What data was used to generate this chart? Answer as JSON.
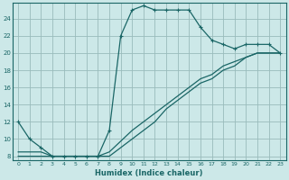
{
  "xlabel": "Humidex (Indice chaleur)",
  "bg_color": "#cce8e8",
  "grid_color": "#99bbbb",
  "line_color": "#1a6666",
  "xlim": [
    -0.5,
    23.5
  ],
  "ylim": [
    7.5,
    25.8
  ],
  "xticks": [
    0,
    1,
    2,
    3,
    4,
    5,
    6,
    7,
    8,
    9,
    10,
    11,
    12,
    13,
    14,
    15,
    16,
    17,
    18,
    19,
    20,
    21,
    22,
    23
  ],
  "yticks": [
    8,
    10,
    12,
    14,
    16,
    18,
    20,
    22,
    24
  ],
  "curve1_x": [
    0,
    1,
    2,
    3,
    4,
    5,
    6,
    7,
    8,
    9,
    10,
    11,
    12,
    13,
    14,
    15,
    16,
    17,
    18,
    19,
    20,
    21,
    22,
    23
  ],
  "curve1_y": [
    12,
    10,
    9,
    8,
    8,
    8,
    8,
    8,
    11,
    22,
    25,
    25.5,
    25,
    25,
    25,
    25,
    23,
    21.5,
    21,
    20.5,
    21,
    21,
    21,
    20
  ],
  "curve2_x": [
    0,
    2,
    3,
    4,
    5,
    6,
    7,
    8,
    10,
    11,
    12,
    13,
    14,
    15,
    16,
    17,
    18,
    19,
    20,
    21,
    22,
    23
  ],
  "curve2_y": [
    8,
    8,
    8,
    8,
    8,
    8,
    8,
    8,
    10,
    11,
    12,
    13.5,
    14.5,
    15.5,
    16.5,
    17,
    18,
    18.5,
    19.5,
    20,
    20,
    20
  ],
  "curve3_x": [
    0,
    2,
    3,
    4,
    5,
    6,
    7,
    8,
    10,
    11,
    12,
    13,
    14,
    15,
    16,
    17,
    18,
    19,
    20,
    21,
    22,
    23
  ],
  "curve3_y": [
    8.5,
    8.5,
    8,
    8,
    8,
    8,
    8,
    8.5,
    11,
    12,
    13,
    14,
    15,
    16,
    17,
    17.5,
    18.5,
    19,
    19.5,
    20,
    20,
    20
  ]
}
